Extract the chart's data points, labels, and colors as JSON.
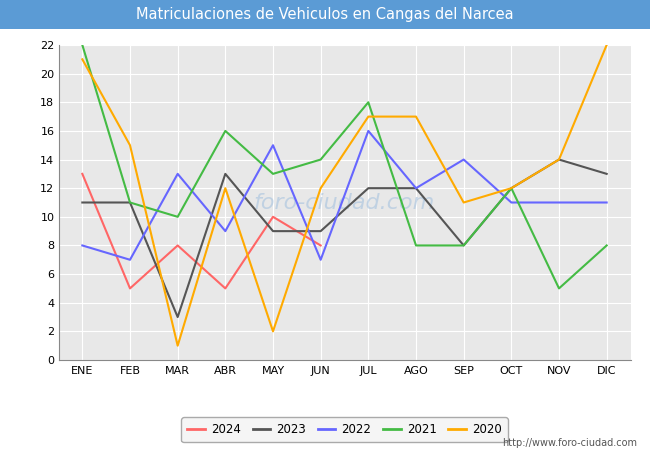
{
  "title": "Matriculaciones de Vehiculos en Cangas del Narcea",
  "title_bg_color": "#5b9bd5",
  "title_text_color": "#ffffff",
  "plot_bg_color": "#e8e8e8",
  "fig_bg_color": "#ffffff",
  "grid_color": "#ffffff",
  "months": [
    "ENE",
    "FEB",
    "MAR",
    "ABR",
    "MAY",
    "JUN",
    "JUL",
    "AGO",
    "SEP",
    "OCT",
    "NOV",
    "DIC"
  ],
  "ylim": [
    0,
    22
  ],
  "yticks": [
    0,
    2,
    4,
    6,
    8,
    10,
    12,
    14,
    16,
    18,
    20,
    22
  ],
  "watermark": "foro-ciudad.com",
  "url": "http://www.foro-ciudad.com",
  "series": [
    {
      "label": "2024",
      "color": "#ff6666",
      "linewidth": 1.5,
      "data": [
        13,
        5,
        8,
        5,
        10,
        8,
        null,
        null,
        null,
        null,
        null,
        null
      ]
    },
    {
      "label": "2023",
      "color": "#555555",
      "linewidth": 1.5,
      "data": [
        11,
        11,
        3,
        13,
        9,
        9,
        12,
        12,
        8,
        12,
        14,
        13
      ]
    },
    {
      "label": "2022",
      "color": "#6666ff",
      "linewidth": 1.5,
      "data": [
        8,
        7,
        13,
        9,
        15,
        7,
        16,
        12,
        14,
        11,
        11,
        11
      ]
    },
    {
      "label": "2021",
      "color": "#44bb44",
      "linewidth": 1.5,
      "data": [
        22,
        11,
        10,
        16,
        13,
        14,
        18,
        8,
        8,
        12,
        5,
        8
      ]
    },
    {
      "label": "2020",
      "color": "#ffaa00",
      "linewidth": 1.5,
      "data": [
        21,
        15,
        1,
        12,
        2,
        12,
        17,
        17,
        11,
        12,
        14,
        22
      ]
    }
  ]
}
